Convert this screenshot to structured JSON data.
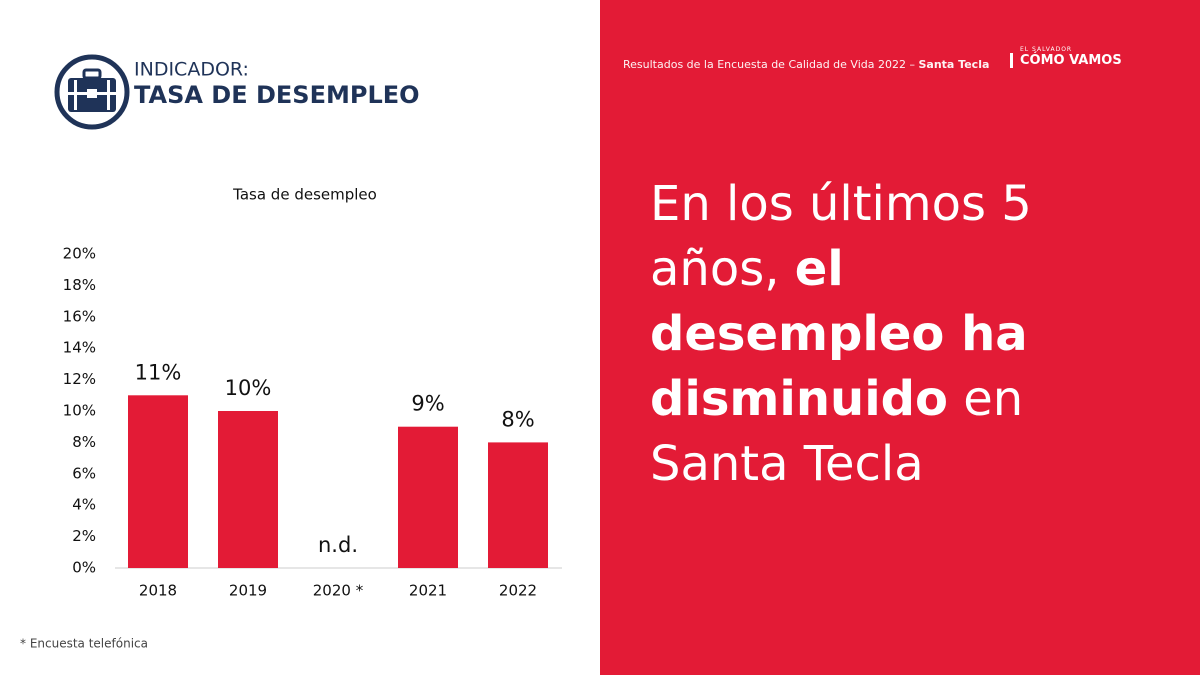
{
  "indicator": {
    "label": "INDICADOR:",
    "title": "TASA DE DESEMPLEO"
  },
  "header": {
    "text": "Resultados de la Encuesta de Calidad de Vida 2022 – ",
    "place": "Santa Tecla"
  },
  "logo": {
    "top": "EL SALVADOR",
    "name": "CÓMO VAMOS"
  },
  "headline": [
    {
      "text": "En los últimos 5 años, ",
      "bold": false
    },
    {
      "text": "el desempleo ha disminuido",
      "bold": true
    },
    {
      "text": " en Santa Tecla",
      "bold": false
    }
  ],
  "footnote": "* Encuesta telefónica",
  "chart_data": {
    "type": "bar",
    "title": "Tasa de desempleo",
    "categories": [
      "2018",
      "2019",
      "2020 *",
      "2021",
      "2022"
    ],
    "values": [
      11,
      10,
      null,
      9,
      8
    ],
    "value_labels": [
      "11%",
      "10%",
      "n.d.",
      "9%",
      "8%"
    ],
    "color": "#e31b36",
    "ylim": [
      0,
      20
    ],
    "yticks": [
      {
        "value": 0,
        "label": "0%"
      },
      {
        "value": 2,
        "label": "2%"
      },
      {
        "value": 4,
        "label": "4%"
      },
      {
        "value": 6,
        "label": "6%"
      },
      {
        "value": 8,
        "label": "8%"
      },
      {
        "value": 10,
        "label": "10%"
      },
      {
        "value": 12,
        "label": "12%"
      },
      {
        "value": 14,
        "label": "14%"
      },
      {
        "value": 16,
        "label": "16%"
      },
      {
        "value": 18,
        "label": "18%"
      },
      {
        "value": 20,
        "label": "20%"
      }
    ],
    "grid": false
  }
}
